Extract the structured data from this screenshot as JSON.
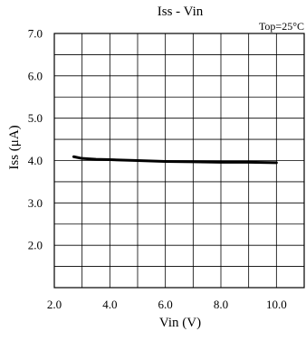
{
  "chart_data": {
    "type": "line",
    "title": "Iss - Vin",
    "annotation": "Top=25°C",
    "xlabel": "Vin (V)",
    "ylabel": "Iss (μA)",
    "xlim": [
      2.0,
      11.0
    ],
    "ylim": [
      1.0,
      7.0
    ],
    "x_ticks": [
      2.0,
      4.0,
      6.0,
      8.0,
      10.0
    ],
    "x_tick_labels": [
      "2.0",
      "4.0",
      "6.0",
      "8.0",
      "10.0"
    ],
    "y_ticks": [
      2.0,
      3.0,
      4.0,
      5.0,
      6.0,
      7.0
    ],
    "y_tick_labels": [
      "2.0",
      "3.0",
      "4.0",
      "5.0",
      "6.0",
      "7.0"
    ],
    "grid": true,
    "grid_x_step": 1.0,
    "grid_y_step": 0.5,
    "series": [
      {
        "x": [
          2.7,
          3.0,
          3.5,
          4.0,
          5.0,
          6.0,
          7.0,
          8.0,
          9.0,
          10.0
        ],
        "y": [
          4.09,
          4.05,
          4.03,
          4.02,
          4.0,
          3.98,
          3.97,
          3.96,
          3.96,
          3.95
        ],
        "color": "#000000"
      }
    ]
  }
}
